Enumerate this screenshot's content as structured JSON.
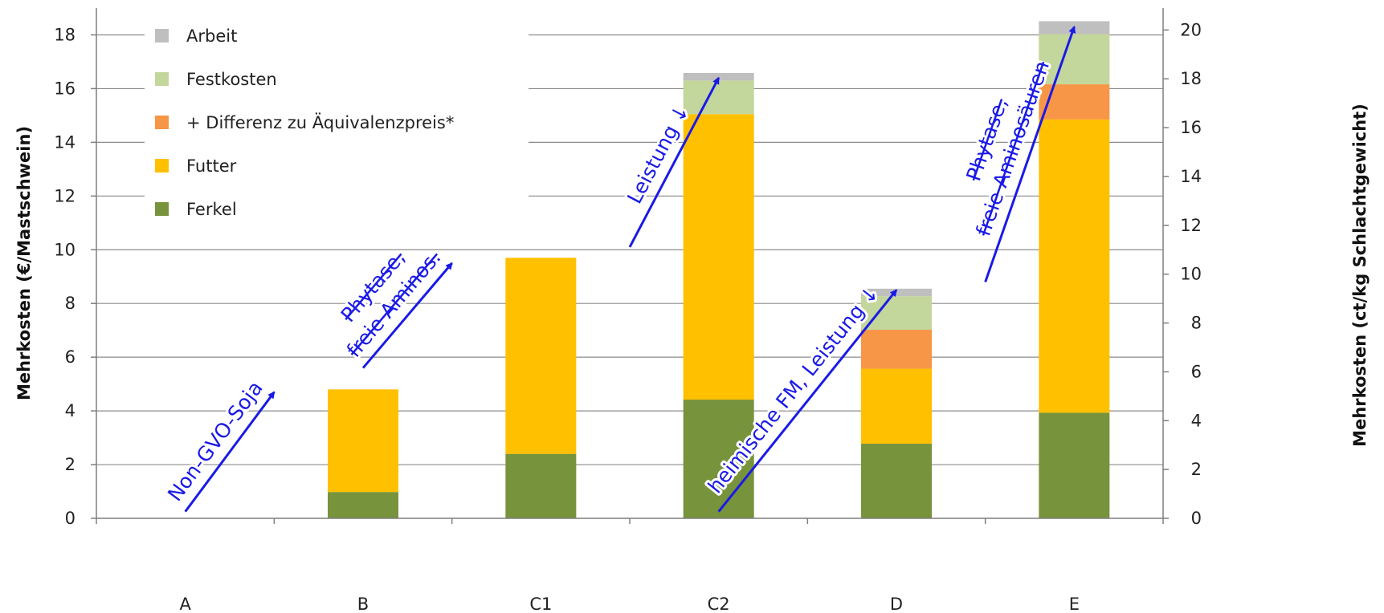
{
  "chart_data": {
    "type": "bar",
    "stacked": true,
    "categories": [
      "A",
      "B",
      "C1",
      "C2",
      "D",
      "E"
    ],
    "series": [
      {
        "name": "Ferkel",
        "color": "#77933c",
        "values": [
          0,
          0.98,
          2.4,
          4.42,
          2.78,
          3.93
        ]
      },
      {
        "name": "Futter",
        "color": "#ffc000",
        "values": [
          0,
          3.82,
          7.3,
          10.63,
          2.79,
          10.92
        ]
      },
      {
        "name": "+ Differenz zu Äquivalenzpreis*",
        "color": "#f79646",
        "values": [
          0,
          0,
          0,
          0,
          1.45,
          1.31
        ]
      },
      {
        "name": "Festkosten",
        "color": "#c3d69b",
        "values": [
          0,
          0,
          0,
          1.25,
          1.25,
          1.87
        ]
      },
      {
        "name": "Arbeit",
        "color": "#bfbfbf",
        "values": [
          0,
          0,
          0,
          0.28,
          0.28,
          0.48
        ]
      }
    ],
    "ylabel": "Mehrkosten (€/Mastschwein)",
    "ylabel_right": "Mehrkosten (ct/kg Schlachtgewicht)",
    "ylim": [
      0,
      19
    ],
    "yticks": [
      0,
      2,
      4,
      6,
      8,
      10,
      12,
      14,
      16,
      18
    ],
    "ylim_right": [
      0,
      20.9
    ],
    "yticks_right": [
      0,
      2,
      4,
      6,
      8,
      10,
      12,
      14,
      16,
      18,
      20
    ],
    "grid": true,
    "legend_position": "top-left",
    "legend_order": [
      "Arbeit",
      "Festkosten",
      "+ Differenz zu Äquivalenzpreis*",
      "Futter",
      "Ferkel"
    ],
    "annotations": [
      {
        "text": "Non-GVO-Soja",
        "from": {
          "x": "A",
          "y": 0.25
        },
        "to": {
          "x": "A-B",
          "y": 4.7
        }
      },
      {
        "text_lines": [
          "Phytase,",
          "freie Aminos."
        ],
        "strikethrough": true,
        "from": {
          "x": "B",
          "y": 5.6
        },
        "to": {
          "x": "B-C1",
          "y": 9.5
        }
      },
      {
        "text": "Leistung ↓",
        "from": {
          "x": "C1-C2",
          "y": 10.1
        },
        "to": {
          "x": "C2",
          "y": 16.4
        }
      },
      {
        "text": "heimische FM, Leistung ↓",
        "from": {
          "x": "C2",
          "y": 0.25
        },
        "to": {
          "x": "D",
          "y": 8.5
        }
      },
      {
        "text_lines": [
          "Phytase,",
          "freie Aminosäuren"
        ],
        "strikethrough": true,
        "from": {
          "x": "D-E",
          "y": 8.8
        },
        "to": {
          "x": "E",
          "y": 18.3
        }
      }
    ]
  }
}
